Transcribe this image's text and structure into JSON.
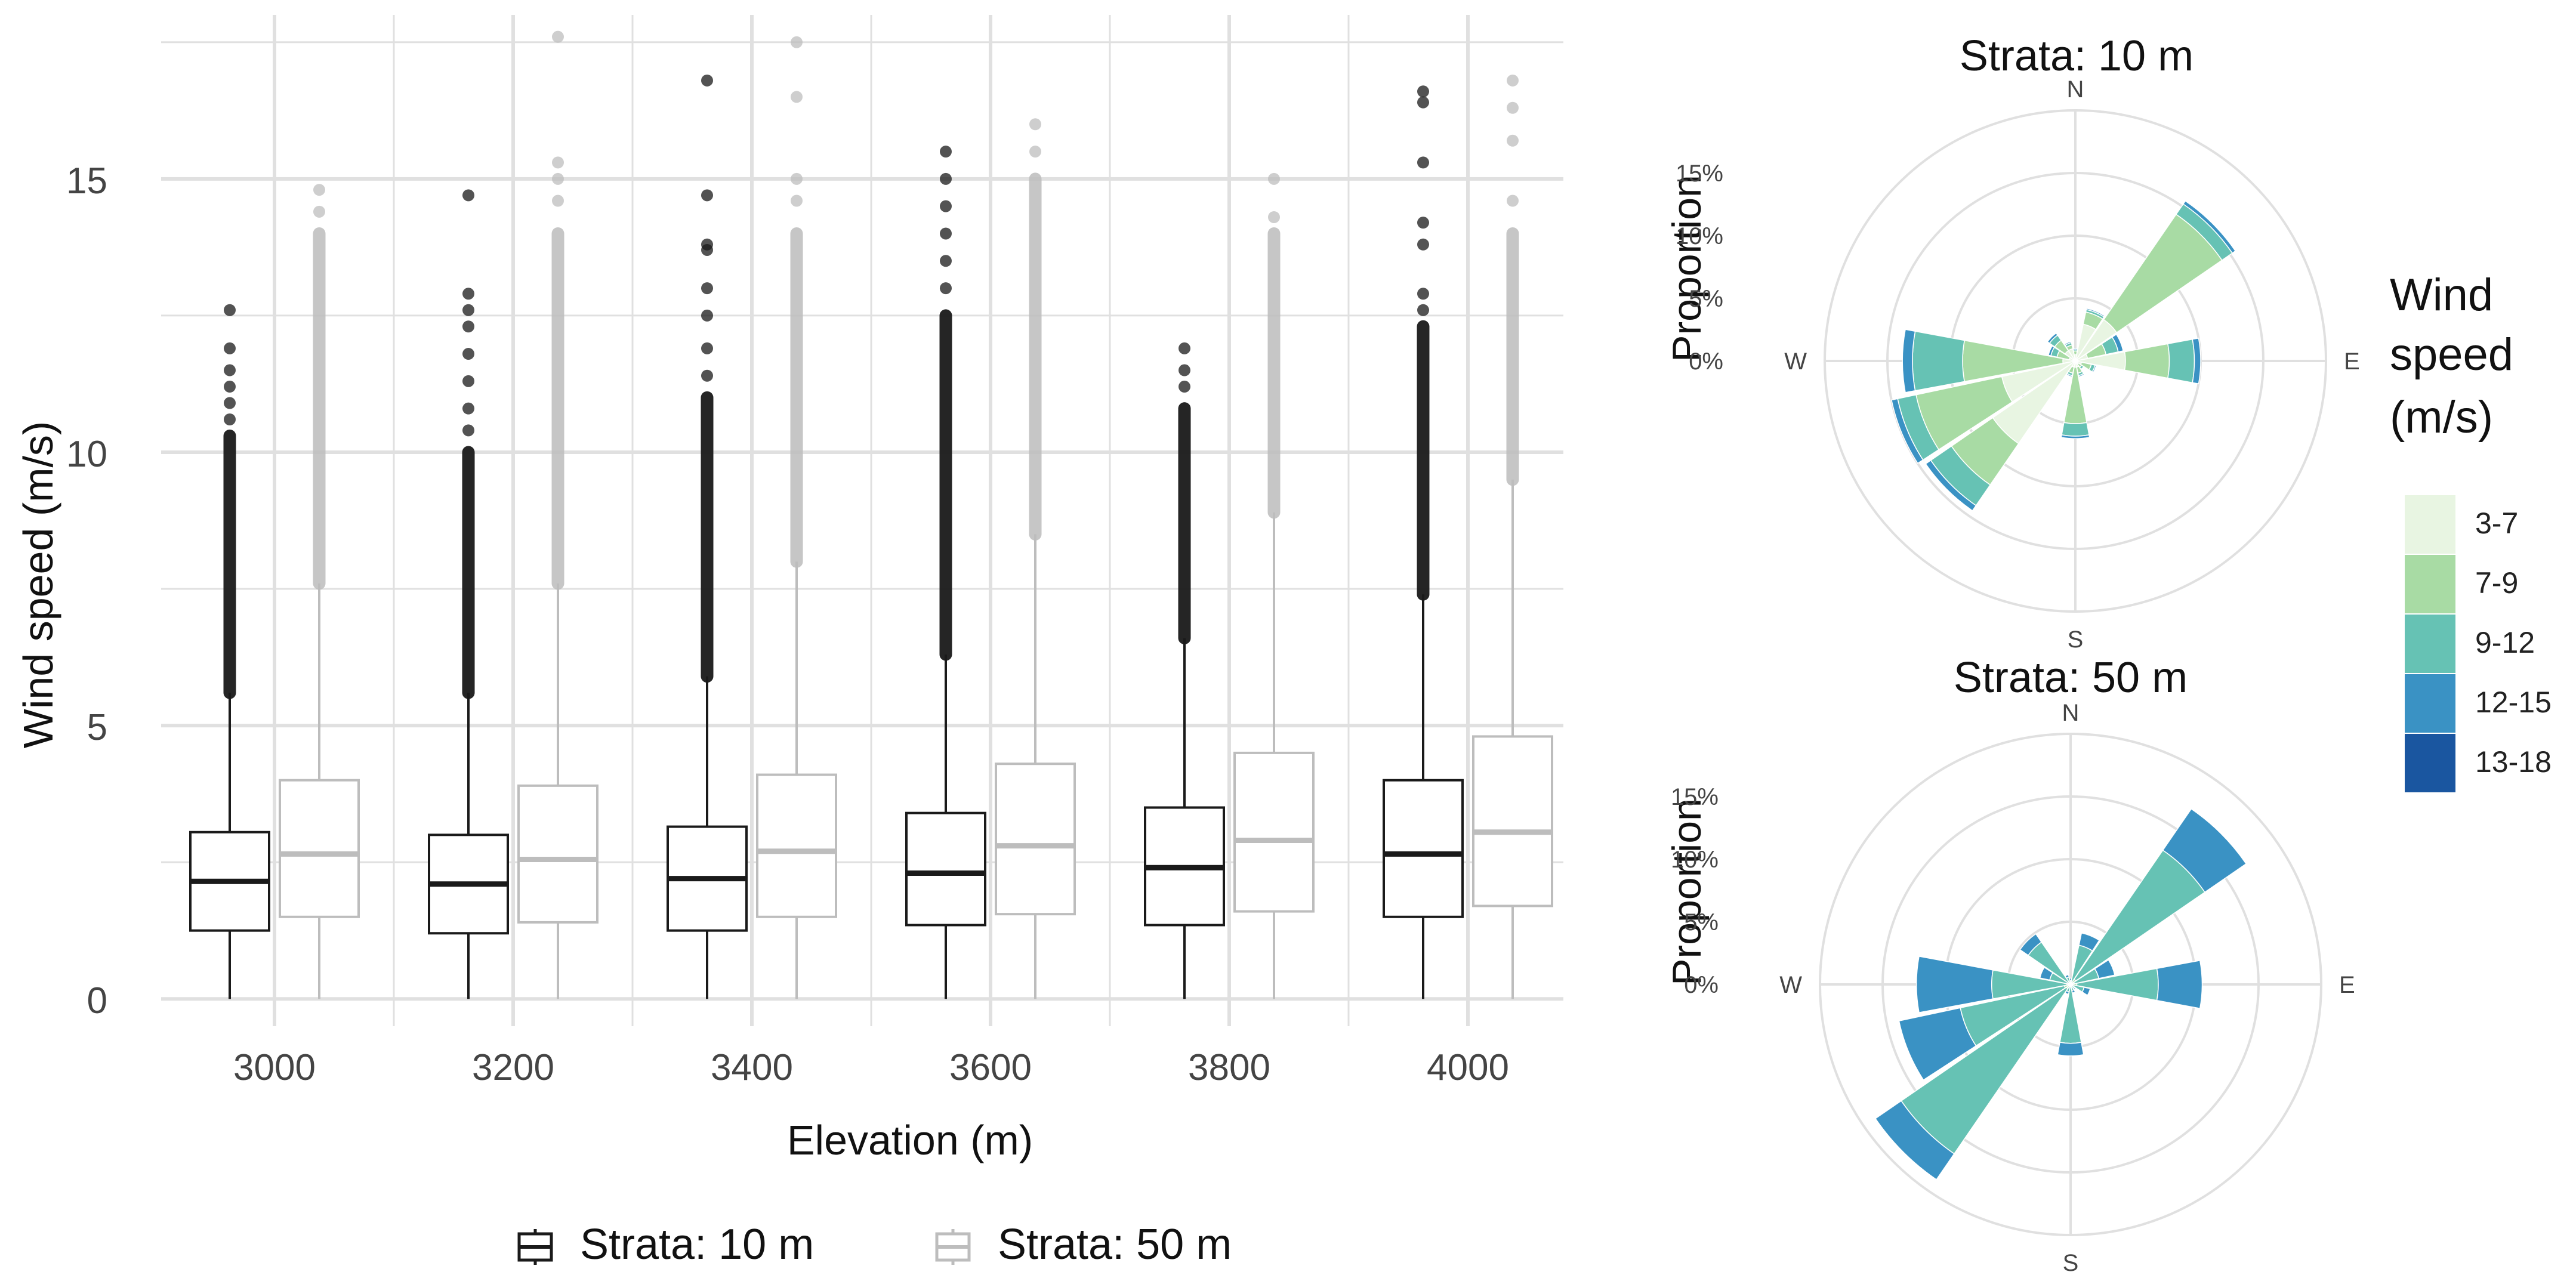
{
  "colors": {
    "strata10": "#1a1a1a",
    "strata50": "#bdbdbd",
    "grid": "#e0e0e0",
    "speed_bins": [
      "#e8f5e2",
      "#a8dba4",
      "#66c2b4",
      "#3a92c4",
      "#1a56a0"
    ]
  },
  "chart_data": [
    {
      "type": "box",
      "xlabel": "Elevation (m)",
      "ylabel": "Wind speed (m/s)",
      "ylim": [
        -0.5,
        18
      ],
      "ticks_y": [
        "0",
        "5",
        "10",
        "15"
      ],
      "categories": [
        "3000",
        "3200",
        "3400",
        "3600",
        "3800",
        "4000"
      ],
      "legend": [
        "Strata: 10 m",
        "Strata: 50 m"
      ],
      "series": [
        {
          "name": "Strata: 10 m",
          "boxes": [
            {
              "min": 0,
              "q1": 1.25,
              "median": 2.15,
              "q3": 3.05,
              "whisker_high": 5.6,
              "outlier_dense_top": 10.3,
              "outliers": [
                10.6,
                10.9,
                11.2,
                11.5,
                11.9,
                12.6
              ]
            },
            {
              "min": 0,
              "q1": 1.2,
              "median": 2.1,
              "q3": 3.0,
              "whisker_high": 5.6,
              "outlier_dense_top": 10.0,
              "outliers": [
                10.4,
                10.8,
                11.3,
                11.8,
                12.3,
                12.6,
                12.9,
                14.7
              ]
            },
            {
              "min": 0,
              "q1": 1.25,
              "median": 2.2,
              "q3": 3.15,
              "whisker_high": 5.9,
              "outlier_dense_top": 11.0,
              "outliers": [
                11.4,
                11.9,
                12.5,
                13.0,
                13.7,
                13.8,
                14.7,
                16.8
              ]
            },
            {
              "min": 0,
              "q1": 1.35,
              "median": 2.3,
              "q3": 3.4,
              "whisker_high": 6.3,
              "outlier_dense_top": 12.5,
              "outliers": [
                13.0,
                13.5,
                14.0,
                14.5,
                15.0,
                15.5
              ]
            },
            {
              "min": 0,
              "q1": 1.35,
              "median": 2.4,
              "q3": 3.5,
              "whisker_high": 6.6,
              "outlier_dense_top": 10.8,
              "outliers": [
                11.2,
                11.5,
                11.9
              ]
            },
            {
              "min": 0,
              "q1": 1.5,
              "median": 2.65,
              "q3": 4.0,
              "whisker_high": 7.4,
              "outlier_dense_top": 12.3,
              "outliers": [
                12.6,
                12.9,
                13.8,
                14.2,
                15.3,
                16.4,
                16.6
              ]
            }
          ]
        },
        {
          "name": "Strata: 50 m",
          "boxes": [
            {
              "min": 0,
              "q1": 1.5,
              "median": 2.65,
              "q3": 4.0,
              "whisker_high": 7.6,
              "outlier_dense_top": 14.0,
              "outliers": [
                14.4,
                14.8
              ]
            },
            {
              "min": 0,
              "q1": 1.4,
              "median": 2.55,
              "q3": 3.9,
              "whisker_high": 7.6,
              "outlier_dense_top": 14.0,
              "outliers": [
                14.6,
                15.0,
                15.3,
                17.6
              ]
            },
            {
              "min": 0,
              "q1": 1.5,
              "median": 2.7,
              "q3": 4.1,
              "whisker_high": 8.0,
              "outlier_dense_top": 14.0,
              "outliers": [
                14.6,
                15.0,
                16.5,
                17.5
              ]
            },
            {
              "min": 0,
              "q1": 1.55,
              "median": 2.8,
              "q3": 4.3,
              "whisker_high": 8.5,
              "outlier_dense_top": 15.0,
              "outliers": [
                15.5,
                16.0
              ]
            },
            {
              "min": 0,
              "q1": 1.6,
              "median": 2.9,
              "q3": 4.5,
              "whisker_high": 8.9,
              "outlier_dense_top": 14.0,
              "outliers": [
                14.3,
                15.0
              ]
            },
            {
              "min": 0,
              "q1": 1.7,
              "median": 3.05,
              "q3": 4.8,
              "whisker_high": 9.5,
              "outlier_dense_top": 14.0,
              "outliers": [
                14.6,
                15.7,
                16.3,
                16.8
              ]
            }
          ]
        }
      ]
    },
    {
      "type": "wind-rose",
      "title": "Strata: 10 m",
      "ylabel": "Proportion",
      "directions": [
        "N",
        "E",
        "S",
        "W"
      ],
      "radial_ticks": [
        "0%",
        "5%",
        "10%",
        "15%"
      ],
      "rmax": 20,
      "sector_angles": [
        0,
        22.5,
        45,
        67.5,
        90,
        112.5,
        135,
        157.5,
        180,
        202.5,
        225,
        247.5,
        270,
        292.5,
        315,
        337.5
      ],
      "speed_bins": [
        "3-7",
        "7-9",
        "9-12",
        "12-15",
        "13-18"
      ],
      "proportions": [
        [
          0.5,
          0.3,
          0.1,
          0.1,
          0
        ],
        [
          3.0,
          1.0,
          0.2,
          0.1,
          0
        ],
        [
          4.0,
          10.2,
          1.0,
          0.3,
          0
        ],
        [
          1.0,
          1.5,
          1.0,
          0.4,
          0
        ],
        [
          4.0,
          3.5,
          2.0,
          0.5,
          0
        ],
        [
          0.5,
          0.8,
          0.3,
          0.1,
          0
        ],
        [
          0.3,
          0.3,
          0.2,
          0,
          0
        ],
        [
          0.5,
          0.5,
          0.2,
          0.1,
          0
        ],
        [
          0.5,
          4.5,
          1.0,
          0.2,
          0
        ],
        [
          0.5,
          0.5,
          0.2,
          0.1,
          0
        ],
        [
          8.0,
          4.0,
          2.0,
          0.5,
          0
        ],
        [
          6.0,
          7.0,
          1.5,
          0.5,
          0
        ],
        [
          1.0,
          8.0,
          4.0,
          0.8,
          0
        ],
        [
          0.5,
          1.0,
          0.5,
          0.2,
          0
        ],
        [
          1.0,
          1.0,
          0.5,
          0.2,
          0
        ],
        [
          1.0,
          0.3,
          0.2,
          0.1,
          0
        ]
      ]
    },
    {
      "type": "wind-rose",
      "title": "Strata: 50 m",
      "ylabel": "Proportion",
      "directions": [
        "N",
        "E",
        "S",
        "W"
      ],
      "radial_ticks": [
        "0%",
        "5%",
        "10%",
        "15%"
      ],
      "rmax": 20,
      "sector_angles": [
        0,
        22.5,
        45,
        67.5,
        90,
        112.5,
        135,
        157.5,
        180,
        202.5,
        225,
        247.5,
        270,
        292.5,
        315,
        337.5
      ],
      "speed_bins": [
        "3-7",
        "7-9",
        "9-12",
        "12-15",
        "13-18"
      ],
      "proportions": [
        [
          0,
          0.1,
          0.2,
          0.2,
          0
        ],
        [
          0,
          0.2,
          3.0,
          1.0,
          0
        ],
        [
          0,
          0.5,
          12.5,
          4.0,
          0
        ],
        [
          0,
          0.3,
          2.0,
          1.3,
          0
        ],
        [
          0,
          0.5,
          6.5,
          3.5,
          0
        ],
        [
          0,
          0.1,
          1.0,
          0.5,
          0
        ],
        [
          0,
          0.1,
          0.3,
          0.1,
          0
        ],
        [
          0,
          0.1,
          0.4,
          0.2,
          0
        ],
        [
          0,
          0.2,
          4.5,
          1.0,
          0
        ],
        [
          0,
          0.1,
          0.5,
          0.2,
          0
        ],
        [
          0,
          0.4,
          16.0,
          2.5,
          0
        ],
        [
          0,
          0.5,
          8.5,
          5.0,
          0
        ],
        [
          0,
          0.3,
          6.0,
          6.0,
          0
        ],
        [
          0,
          0.2,
          1.5,
          0.8,
          0
        ],
        [
          0,
          0.1,
          4.0,
          0.8,
          0
        ],
        [
          0,
          0.1,
          0.5,
          0.2,
          0
        ]
      ]
    }
  ],
  "wind_legend": {
    "title_lines": [
      "Wind",
      "speed",
      "(m/s)"
    ],
    "labels": [
      "3-7",
      "7-9",
      "9-12",
      "12-15",
      "13-18"
    ]
  }
}
